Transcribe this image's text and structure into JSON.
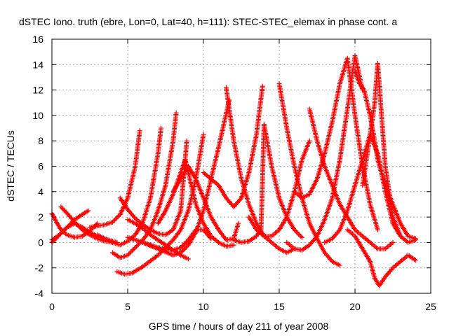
{
  "chart_data": {
    "type": "scatter",
    "title": "dSTEC Iono. truth (ebre, Lon=0, Lat=40, h=111): STEC-STEC_elemax in phase cont. a",
    "xlabel": "GPS time / hours of day 211 of year 2008",
    "ylabel": "dSTEC  / TECUs",
    "xlim": [
      0,
      25
    ],
    "ylim": [
      -4,
      16
    ],
    "xticks": [
      0,
      5,
      10,
      15,
      20,
      25
    ],
    "yticks": [
      -4,
      -2,
      0,
      2,
      4,
      6,
      8,
      10,
      12,
      14,
      16
    ],
    "grid": true,
    "marker": "+",
    "color": "#ff0000",
    "series": [
      {
        "x": [
          0.0,
          0.5,
          1.0,
          1.5,
          2.0,
          2.5,
          3.0,
          3.5,
          4.0,
          4.3
        ],
        "y": [
          0.0,
          0.6,
          1.2,
          1.5,
          1.2,
          0.8,
          0.5,
          0.3,
          0.1,
          0.0
        ]
      },
      {
        "x": [
          0.0,
          0.3,
          0.6,
          1.0,
          1.5,
          2.0,
          2.5,
          3.0
        ],
        "y": [
          2.3,
          1.6,
          1.0,
          0.6,
          0.4,
          0.5,
          0.9,
          1.5
        ]
      },
      {
        "x": [
          0.6,
          1.0,
          1.5,
          2.0,
          2.5,
          3.0,
          3.5,
          4.0
        ],
        "y": [
          2.8,
          2.3,
          1.6,
          1.0,
          0.6,
          0.3,
          0.1,
          0.0
        ]
      },
      {
        "x": [
          0.0,
          0.5,
          1.0,
          1.5,
          2.0,
          2.4
        ],
        "y": [
          0.2,
          0.6,
          1.2,
          1.8,
          2.2,
          2.5
        ]
      },
      {
        "x": [
          2.5,
          3.0,
          3.5,
          4.0,
          4.5,
          5.0,
          5.5,
          5.8
        ],
        "y": [
          1.2,
          1.3,
          1.4,
          1.6,
          2.2,
          3.5,
          6.0,
          8.8
        ]
      },
      {
        "x": [
          3.0,
          3.5,
          4.0,
          4.5,
          5.0,
          5.5,
          6.0,
          6.5,
          7.0,
          7.2
        ],
        "y": [
          0.6,
          0.3,
          0.0,
          -0.2,
          0.1,
          0.6,
          1.6,
          3.5,
          7.0,
          9.0
        ]
      },
      {
        "x": [
          4.0,
          4.5,
          5.0,
          5.5,
          6.0,
          6.5,
          7.0,
          7.5,
          8.0,
          8.2
        ],
        "y": [
          -0.8,
          -1.2,
          -1.0,
          -0.4,
          0.2,
          1.0,
          2.5,
          4.5,
          8.0,
          10.2
        ]
      },
      {
        "x": [
          4.3,
          4.8,
          5.3,
          6.0,
          7.0,
          8.0,
          8.5,
          9.0,
          9.5,
          10.0
        ],
        "y": [
          -2.3,
          -2.5,
          -2.4,
          -1.9,
          -1.0,
          0.2,
          1.0,
          2.5,
          5.0,
          8.5
        ]
      },
      {
        "x": [
          4.5,
          5.0,
          5.5,
          6.0,
          6.5,
          7.0,
          7.5,
          8.0,
          8.5,
          8.9
        ],
        "y": [
          3.5,
          2.6,
          1.9,
          1.4,
          1.0,
          0.7,
          0.6,
          1.0,
          2.5,
          8.0
        ]
      },
      {
        "x": [
          5.0,
          5.5,
          6.0,
          6.5,
          7.0,
          7.5,
          8.0,
          8.5,
          9.0
        ],
        "y": [
          1.8,
          1.5,
          1.1,
          0.6,
          0.2,
          -0.2,
          -0.6,
          -1.0,
          -1.3
        ]
      },
      {
        "x": [
          5.0,
          6.0,
          7.0,
          8.0,
          8.5,
          9.0,
          9.5,
          10.0,
          10.5
        ],
        "y": [
          0.4,
          0.0,
          -0.4,
          -0.6,
          -0.4,
          0.2,
          1.0,
          1.0,
          0.3
        ]
      },
      {
        "x": [
          6.0,
          7.0,
          8.0,
          8.5,
          9.0,
          9.5,
          10.0,
          10.5,
          11.0,
          11.7
        ],
        "y": [
          0.0,
          -0.5,
          -1.0,
          -0.8,
          -0.2,
          0.8,
          2.5,
          5.0,
          7.5,
          11.2
        ]
      },
      {
        "x": [
          7.0,
          7.5,
          8.0,
          8.5,
          8.8,
          9.2,
          9.5,
          10.0,
          10.5,
          11.0,
          11.5,
          12.0
        ],
        "y": [
          1.5,
          2.5,
          3.8,
          5.5,
          6.5,
          4.5,
          3.0,
          1.5,
          0.5,
          0.0,
          -0.3,
          -0.2
        ]
      },
      {
        "x": [
          8.0,
          8.5,
          9.0,
          9.5,
          10.0,
          10.5,
          11.0,
          11.5,
          12.0,
          12.3
        ],
        "y": [
          4.0,
          5.0,
          6.0,
          5.0,
          3.5,
          2.0,
          1.0,
          0.2,
          0.3,
          1.5
        ]
      },
      {
        "x": [
          10.0,
          11.0,
          11.5,
          12.0,
          12.5,
          13.0,
          13.5,
          13.9
        ],
        "y": [
          5.5,
          4.5,
          3.5,
          2.8,
          3.5,
          5.5,
          8.5,
          12.3
        ]
      },
      {
        "x": [
          11.5,
          12.0,
          12.5,
          13.0,
          13.5,
          14.0,
          14.5,
          15.0,
          15.5,
          16.0
        ],
        "y": [
          12.2,
          8.0,
          5.0,
          3.0,
          1.5,
          0.5,
          0.0,
          -0.5,
          -0.8,
          -0.5
        ]
      },
      {
        "x": [
          12.0,
          12.5,
          13.0,
          13.5,
          13.8,
          14.0,
          14.5,
          15.0,
          15.5,
          16.0,
          16.5
        ],
        "y": [
          0.2,
          0.0,
          0.1,
          0.5,
          1.0,
          9.3,
          6.0,
          3.5,
          2.0,
          1.0,
          0.4
        ]
      },
      {
        "x": [
          13.0,
          13.5,
          14.0,
          14.5,
          15.0,
          15.5,
          16.0,
          16.5,
          17.0
        ],
        "y": [
          2.0,
          1.0,
          0.5,
          0.5,
          1.0,
          2.0,
          4.0,
          6.5,
          8.0
        ]
      },
      {
        "x": [
          15.0,
          15.5,
          16.0,
          16.5,
          17.0,
          17.5,
          18.0,
          18.5,
          19.0
        ],
        "y": [
          12.5,
          9.0,
          6.0,
          3.5,
          1.5,
          0.3,
          -0.8,
          -1.5,
          -1.8
        ]
      },
      {
        "x": [
          15.5,
          16.0,
          16.5,
          17.0,
          17.5,
          18.0,
          18.5,
          19.0,
          19.5,
          20.0,
          20.5
        ],
        "y": [
          0.0,
          -0.5,
          -0.6,
          -0.2,
          0.5,
          1.8,
          3.5,
          6.5,
          10.5,
          14.7,
          12.0
        ]
      },
      {
        "x": [
          16.0,
          16.5,
          17.0,
          17.5,
          18.0,
          18.5,
          19.0,
          19.5,
          20.0,
          20.5,
          21.0,
          21.5
        ],
        "y": [
          4.0,
          3.5,
          3.8,
          5.0,
          7.0,
          9.5,
          12.5,
          14.5,
          10.0,
          6.0,
          3.0,
          1.0
        ]
      },
      {
        "x": [
          17.0,
          17.5,
          18.0,
          18.5,
          19.0,
          19.5,
          20.0,
          20.5,
          21.0,
          21.5,
          22.0,
          22.5
        ],
        "y": [
          10.5,
          8.0,
          6.0,
          4.5,
          3.0,
          2.0,
          1.0,
          0.5,
          0.0,
          -0.5,
          -0.5,
          0.0
        ]
      },
      {
        "x": [
          18.0,
          18.5,
          19.0,
          19.5,
          20.0,
          20.5,
          21.0,
          21.5,
          22.0,
          22.5,
          23.0
        ],
        "y": [
          0.0,
          0.3,
          1.0,
          2.5,
          4.5,
          6.5,
          8.5,
          7.0,
          4.0,
          1.5,
          0.5
        ]
      },
      {
        "x": [
          19.5,
          20.0,
          20.5,
          21.0,
          21.3,
          21.6,
          22.0,
          22.5,
          23.0,
          23.5,
          24.0
        ],
        "y": [
          1.0,
          0.5,
          -0.5,
          -1.5,
          -2.8,
          -3.4,
          -2.7,
          -2.0,
          -1.5,
          -1.0,
          -1.4
        ]
      },
      {
        "x": [
          20.0,
          20.3,
          20.6,
          21.0,
          21.3,
          21.5,
          22.0,
          22.5,
          23.0,
          23.5,
          24.0
        ],
        "y": [
          13.5,
          12.5,
          12.0,
          10.0,
          8.0,
          6.5,
          4.5,
          3.0,
          1.5,
          0.5,
          0.3
        ]
      },
      {
        "x": [
          20.5,
          21.0,
          21.3,
          21.5,
          22.0,
          22.5,
          23.0,
          23.5,
          24.0
        ],
        "y": [
          4.5,
          8.5,
          11.0,
          14.1,
          6.0,
          2.0,
          0.5,
          0.0,
          0.2
        ]
      }
    ]
  }
}
